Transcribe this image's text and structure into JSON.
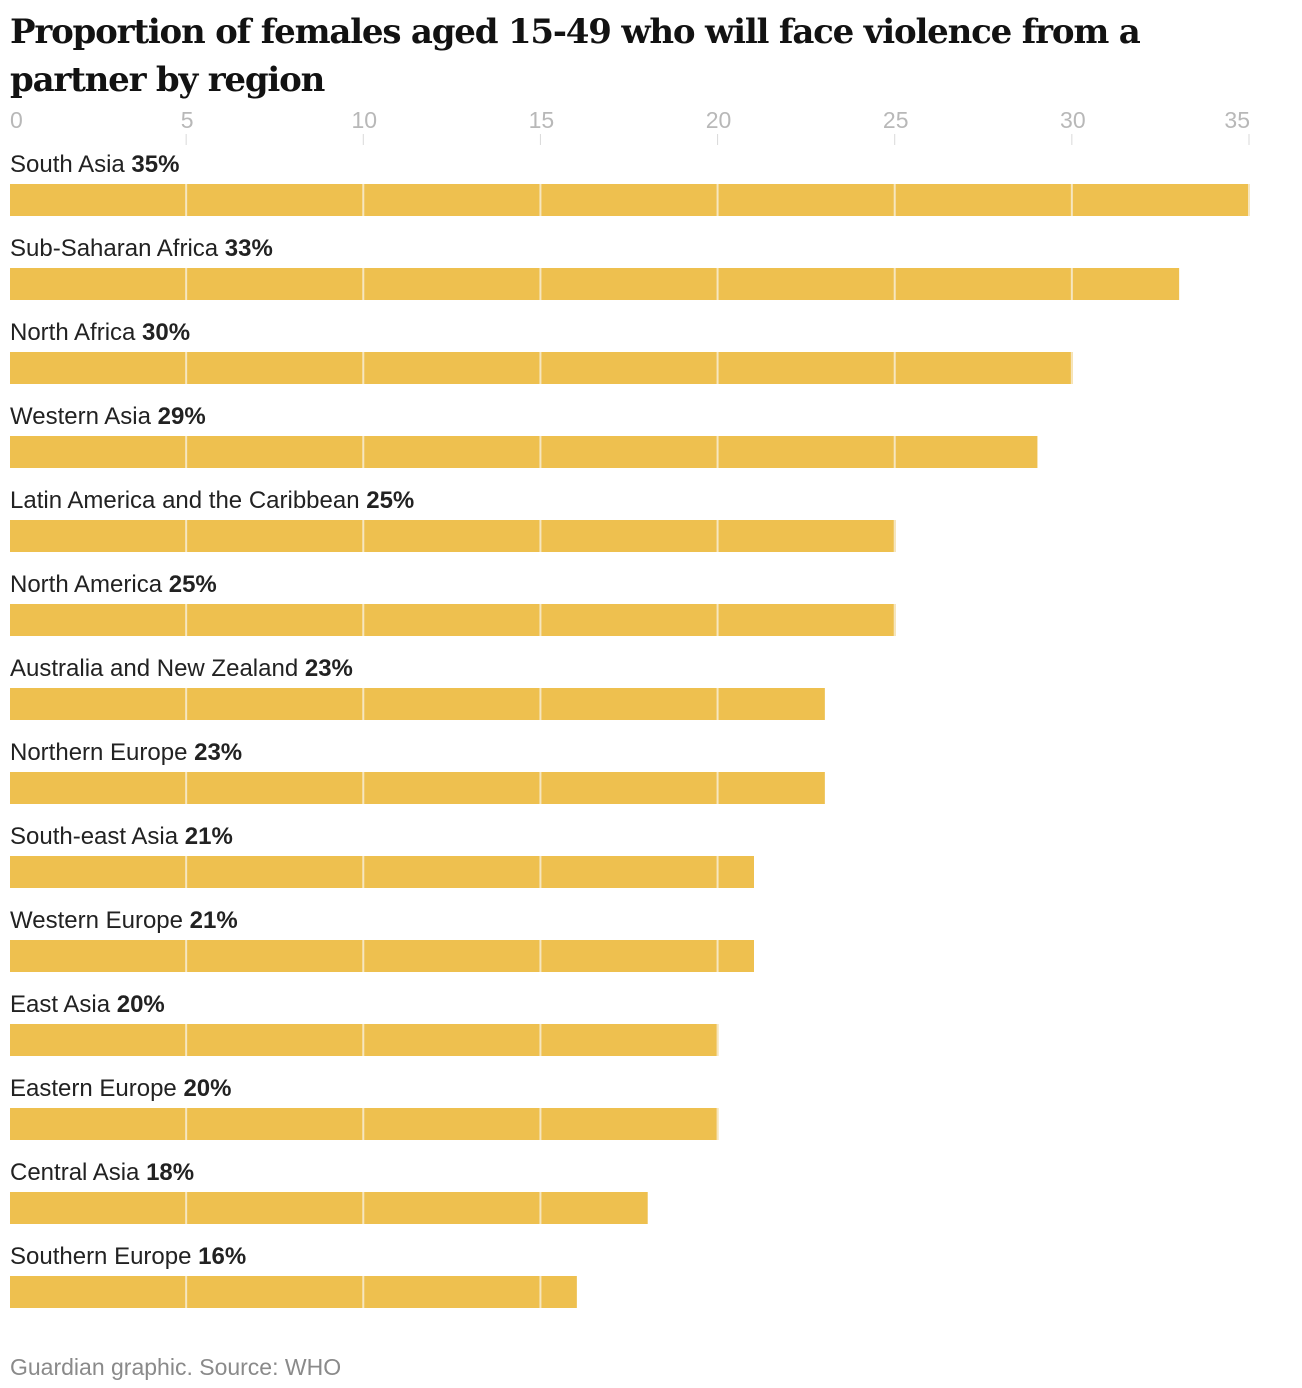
{
  "chart_data": {
    "type": "bar",
    "orientation": "horizontal",
    "title": "Proportion of females aged 15-49 who will face violence from a partner by region",
    "xlabel": "",
    "ylabel": "",
    "xlim": [
      0,
      35
    ],
    "xticks": [
      0,
      5,
      10,
      15,
      20,
      25,
      30,
      35
    ],
    "xtick_labels": [
      "0",
      "5",
      "10",
      "15",
      "20",
      "25",
      "30",
      "35"
    ],
    "grid": true,
    "categories": [
      "South Asia",
      "Sub-Saharan Africa",
      "North Africa",
      "Western Asia",
      "Latin America and the Caribbean",
      "North America",
      "Australia and New Zealand",
      "Northern Europe",
      "South-east Asia",
      "Western Europe",
      "East Asia",
      "Eastern Europe",
      "Central Asia",
      "Southern Europe"
    ],
    "values": [
      35,
      33,
      30,
      29,
      25,
      25,
      23,
      23,
      21,
      21,
      20,
      20,
      18,
      16
    ],
    "value_labels": [
      "35%",
      "33%",
      "30%",
      "29%",
      "25%",
      "25%",
      "23%",
      "23%",
      "21%",
      "21%",
      "20%",
      "20%",
      "18%",
      "16%"
    ],
    "bar_color": "#eec04f",
    "gridline_color": "#f6e6bf"
  },
  "source": "Guardian graphic. Source: WHO"
}
